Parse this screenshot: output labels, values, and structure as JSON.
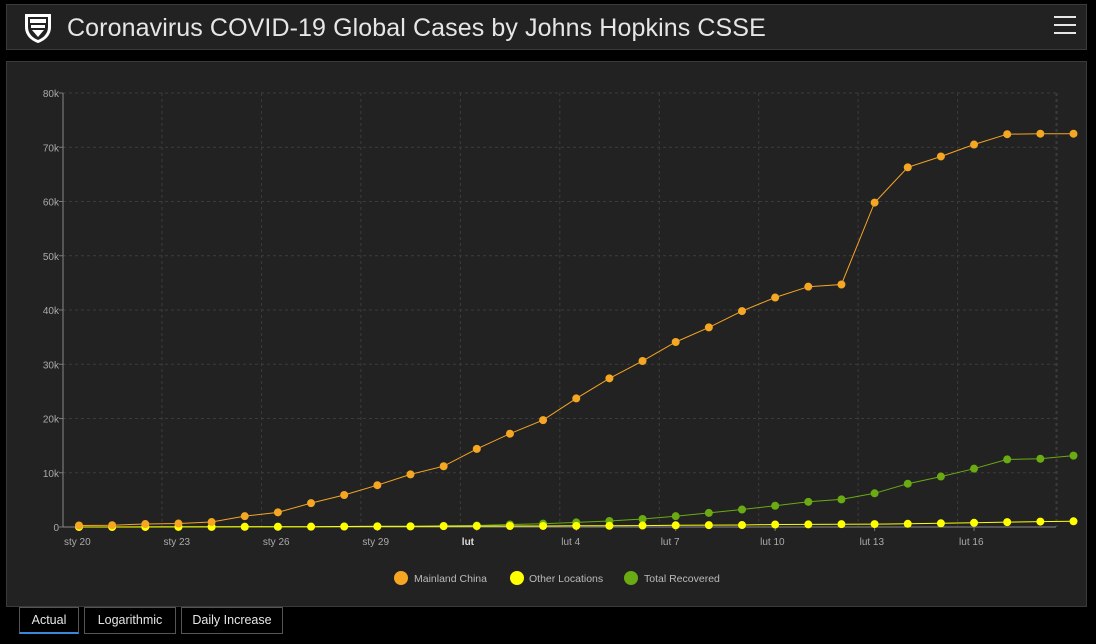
{
  "header": {
    "title": "Coronavirus COVID-19 Global Cases by Johns Hopkins CSSE"
  },
  "tabs": [
    {
      "label": "Actual",
      "active": true
    },
    {
      "label": "Logarithmic",
      "active": false
    },
    {
      "label": "Daily Increase",
      "active": false
    }
  ],
  "chart_data": {
    "type": "line",
    "ylim": [
      0,
      80000
    ],
    "y_ticks": [
      0,
      10000,
      20000,
      30000,
      40000,
      50000,
      60000,
      70000,
      80000
    ],
    "y_tick_labels": [
      "0",
      "10k",
      "20k",
      "30k",
      "40k",
      "50k",
      "60k",
      "70k",
      "80k"
    ],
    "x_tick_labels": [
      "sty 20",
      "sty 23",
      "sty 26",
      "sty 29",
      "lut",
      "lut 4",
      "lut 7",
      "lut 10",
      "lut 13",
      "lut 16"
    ],
    "x_ticks_day_index": [
      0,
      3,
      6,
      9,
      12,
      15,
      18,
      21,
      24,
      27
    ],
    "x": [
      "sty 20",
      "sty 21",
      "sty 22",
      "sty 23",
      "sty 24",
      "sty 25",
      "sty 26",
      "sty 27",
      "sty 28",
      "sty 29",
      "sty 30",
      "sty 31",
      "lut 1",
      "lut 2",
      "lut 3",
      "lut 4",
      "lut 5",
      "lut 6",
      "lut 7",
      "lut 8",
      "lut 9",
      "lut 10",
      "lut 11",
      "lut 12",
      "lut 13",
      "lut 14",
      "lut 15",
      "lut 16",
      "lut 17",
      "lut 18",
      "lut 19"
    ],
    "grid": true,
    "legend_position": "bottom",
    "series": [
      {
        "name": "Mainland China",
        "color": "#f5a623",
        "values": [
          278,
          326,
          547,
          639,
          916,
          2000,
          2700,
          4400,
          5900,
          7700,
          9700,
          11200,
          14400,
          17200,
          19700,
          23700,
          27400,
          30600,
          34100,
          36800,
          39800,
          42300,
          44300,
          44700,
          59800,
          66300,
          68300,
          70500,
          72400,
          72500,
          72500
        ]
      },
      {
        "name": "Other Locations",
        "color": "#ffff00",
        "values": [
          4,
          6,
          8,
          14,
          25,
          40,
          57,
          64,
          87,
          105,
          118,
          153,
          173,
          183,
          188,
          212,
          227,
          265,
          317,
          343,
          361,
          457,
          476,
          523,
          538,
          595,
          685,
          780,
          896,
          999,
          1050
        ]
      },
      {
        "name": "Total Recovered",
        "color": "#6aaa12",
        "values": [
          0,
          0,
          28,
          30,
          36,
          39,
          49,
          58,
          101,
          120,
          135,
          214,
          275,
          463,
          614,
          843,
          1115,
          1477,
          1999,
          2596,
          3219,
          3918,
          4636,
          5082,
          6217,
          7977,
          9298,
          10755,
          12462,
          12583,
          13155
        ]
      }
    ]
  }
}
